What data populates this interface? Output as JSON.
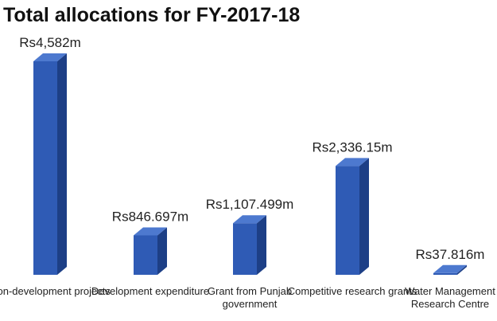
{
  "chart_data": {
    "type": "bar",
    "title": "Total allocations for FY-2017-18",
    "xlabel": "",
    "ylabel": "",
    "unit": "Rs million",
    "categories": [
      [
        "Non-development projects"
      ],
      [
        "Development expenditure"
      ],
      [
        "Grant from Punjab",
        "government"
      ],
      [
        "Competitive research grants"
      ],
      [
        "Water Management",
        "Research Centre"
      ]
    ],
    "values": [
      4582,
      846.697,
      1107.499,
      2336.15,
      37.816
    ],
    "data_labels": [
      "Rs4,582m",
      "Rs846.697m",
      "Rs1,107.499m",
      "Rs2,336.15m",
      "Rs37.816m"
    ],
    "ylim": [
      0,
      4582
    ],
    "grid": false,
    "legend": "none",
    "bar_color": "#2f5bb5",
    "bar_side_color": "#1d3f86",
    "bar_top_color": "#4d79cf"
  }
}
